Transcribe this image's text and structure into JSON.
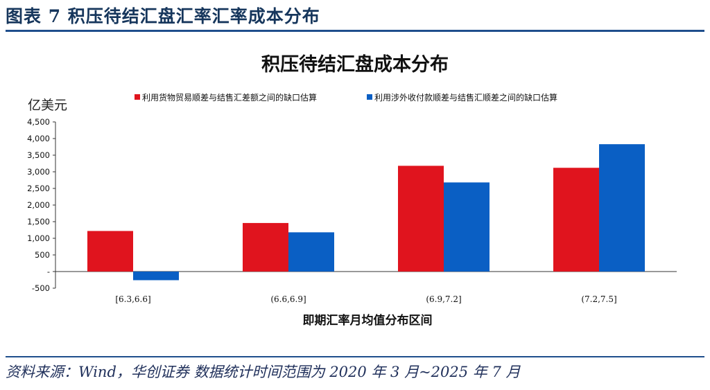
{
  "header": {
    "figure_title": "图表 7    积压待结汇盘汇率汇率成本分布"
  },
  "footer": {
    "source": "资料来源：Wind，华创证券    数据统计时间范围为 2020 年 3 月~2025 年 7 月"
  },
  "colors": {
    "accent": "#1f4e8c",
    "series_red": "#e0141e",
    "series_blue": "#0a5fc4"
  },
  "chart_data": {
    "type": "bar",
    "title": "积压待结汇盘成本分布",
    "unit_label": "亿美元",
    "xlabel": "即期汇率月均值分布区间",
    "ylabel": "",
    "categories": [
      "[6.3,6.6]",
      "(6.6,6.9]",
      "(6.9,7.2]",
      "(7.2,7.5]"
    ],
    "series": [
      {
        "name": "利用货物贸易顺差与结售汇差额之间的缺口估算",
        "color": "#e0141e",
        "values": [
          1220,
          1460,
          3180,
          3120
        ]
      },
      {
        "name": "利用涉外收付款顺差与结售汇顺差之间的缺口估算",
        "color": "#0a5fc4",
        "values": [
          -260,
          1180,
          2680,
          3830
        ]
      }
    ],
    "ylim": [
      -500,
      4500
    ],
    "yticks": [
      -500,
      0,
      500,
      1000,
      1500,
      2000,
      2500,
      3000,
      3500,
      4000,
      4500
    ],
    "ytick_labels": [
      "-500",
      "-",
      "500",
      "1,000",
      "1,500",
      "2,000",
      "2,500",
      "3,000",
      "3,500",
      "4,000",
      "4,500"
    ],
    "grid": false,
    "legend_position": "top"
  }
}
